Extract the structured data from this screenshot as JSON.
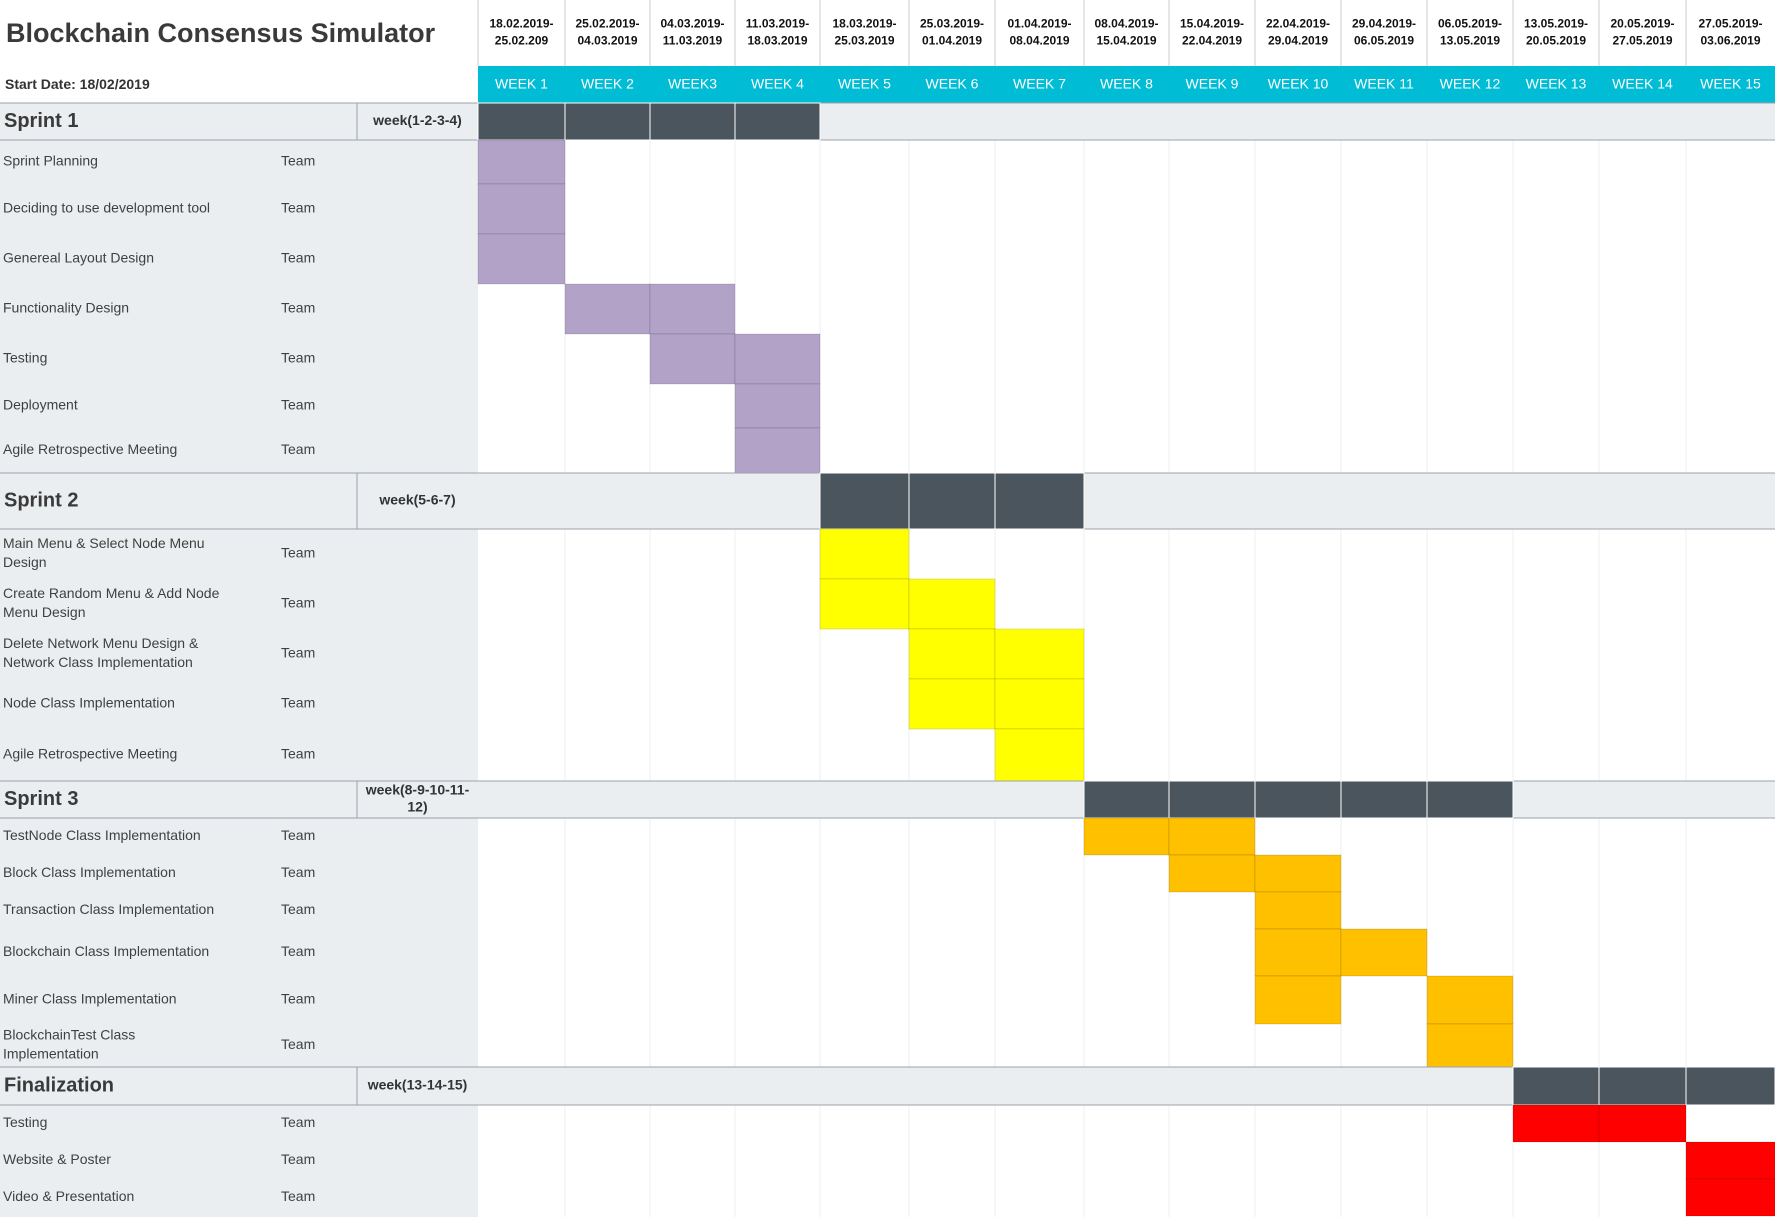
{
  "title": "Blockchain Consensus Simulator",
  "start_date_label": "Start Date: 18/02/2019",
  "assignee_label": "Team",
  "colors": {
    "header_accent": "#00BCD4",
    "section_bar": "#4A555E",
    "label_bg": "#EBEEF1",
    "sprint1": "#B2A2C8",
    "sprint2": "#FFFF00",
    "sprint3": "#FFC000",
    "finalization": "#FF0000"
  },
  "chart_data": {
    "type": "gantt",
    "weeks": [
      {
        "dates": [
          "18.02.2019-",
          "25.02.209"
        ],
        "label": "WEEK 1"
      },
      {
        "dates": [
          "25.02.2019-",
          "04.03.2019"
        ],
        "label": "WEEK 2"
      },
      {
        "dates": [
          "04.03.2019-",
          "11.03.2019"
        ],
        "label": "WEEK3"
      },
      {
        "dates": [
          "11.03.2019-",
          "18.03.2019"
        ],
        "label": "WEEK 4"
      },
      {
        "dates": [
          "18.03.2019-",
          "25.03.2019"
        ],
        "label": "WEEK 5"
      },
      {
        "dates": [
          "25.03.2019-",
          "01.04.2019"
        ],
        "label": "WEEK 6"
      },
      {
        "dates": [
          "01.04.2019-",
          "08.04.2019"
        ],
        "label": "WEEK 7"
      },
      {
        "dates": [
          "08.04.2019-",
          "15.04.2019"
        ],
        "label": "WEEK 8"
      },
      {
        "dates": [
          "15.04.2019-",
          "22.04.2019"
        ],
        "label": "WEEK 9"
      },
      {
        "dates": [
          "22.04.2019-",
          "29.04.2019"
        ],
        "label": "WEEK 10"
      },
      {
        "dates": [
          "29.04.2019-",
          "06.05.2019"
        ],
        "label": "WEEK 11"
      },
      {
        "dates": [
          "06.05.2019-",
          "13.05.2019"
        ],
        "label": "WEEK 12"
      },
      {
        "dates": [
          "13.05.2019-",
          "20.05.2019"
        ],
        "label": "WEEK 13"
      },
      {
        "dates": [
          "20.05.2019-",
          "27.05.2019"
        ],
        "label": "WEEK 14"
      },
      {
        "dates": [
          "27.05.2019-",
          "03.06.2019"
        ],
        "label": "WEEK 15"
      }
    ],
    "sections": [
      {
        "name": "Sprint 1",
        "weeks_label": [
          "week(1-2-3-4)"
        ],
        "span": [
          1,
          4
        ],
        "color_key": "sprint1",
        "tasks": [
          {
            "name": [
              "Sprint Planning"
            ],
            "weeks": [
              1
            ]
          },
          {
            "name": [
              "Deciding to use development tool"
            ],
            "weeks": [
              1
            ]
          },
          {
            "name": [
              "Genereal Layout Design"
            ],
            "weeks": [
              1
            ]
          },
          {
            "name": [
              "Functionality Design"
            ],
            "weeks": [
              2,
              3
            ]
          },
          {
            "name": [
              "Testing"
            ],
            "weeks": [
              3,
              4
            ]
          },
          {
            "name": [
              "Deployment"
            ],
            "weeks": [
              4
            ]
          },
          {
            "name": [
              "Agile Retrospective Meeting"
            ],
            "weeks": [
              4
            ]
          }
        ]
      },
      {
        "name": "Sprint 2",
        "weeks_label": [
          "week(5-6-7)"
        ],
        "span": [
          5,
          7
        ],
        "color_key": "sprint2",
        "tasks": [
          {
            "name": [
              "Main Menu & Select Node Menu",
              "Design"
            ],
            "weeks": [
              5
            ]
          },
          {
            "name": [
              "Create Random Menu & Add Node",
              "Menu Design"
            ],
            "weeks": [
              5,
              6
            ]
          },
          {
            "name": [
              "Delete Network Menu Design &",
              "Network Class Implementation"
            ],
            "weeks": [
              6,
              7
            ]
          },
          {
            "name": [
              "Node Class Implementation"
            ],
            "weeks": [
              6,
              7
            ]
          },
          {
            "name": [
              "Agile Retrospective Meeting"
            ],
            "weeks": [
              7
            ]
          }
        ]
      },
      {
        "name": "Sprint 3",
        "weeks_label": [
          "week(8-9-10-11-",
          "12)"
        ],
        "span": [
          8,
          12
        ],
        "color_key": "sprint3",
        "tasks": [
          {
            "name": [
              "TestNode Class Implementation"
            ],
            "weeks": [
              8,
              9
            ]
          },
          {
            "name": [
              "Block Class Implementation"
            ],
            "weeks": [
              9,
              10
            ]
          },
          {
            "name": [
              "Transaction Class Implementation"
            ],
            "weeks": [
              10
            ]
          },
          {
            "name": [
              "Blockchain Class Implementation"
            ],
            "weeks": [
              10,
              11
            ]
          },
          {
            "name": [
              "Miner Class Implementation"
            ],
            "weeks": [
              10,
              12
            ]
          },
          {
            "name": [
              "BlockchainTest Class",
              "Implementation"
            ],
            "weeks": [
              12
            ]
          }
        ]
      },
      {
        "name": "Finalization",
        "weeks_label": [
          "week(13-14-15)"
        ],
        "span": [
          13,
          15
        ],
        "color_key": "finalization",
        "tasks": [
          {
            "name": [
              "Testing"
            ],
            "weeks": [
              13,
              14
            ]
          },
          {
            "name": [
              "Website & Poster"
            ],
            "weeks": [
              15
            ]
          },
          {
            "name": [
              "Video & Presentation"
            ],
            "weeks": [
              15
            ]
          }
        ]
      }
    ]
  }
}
